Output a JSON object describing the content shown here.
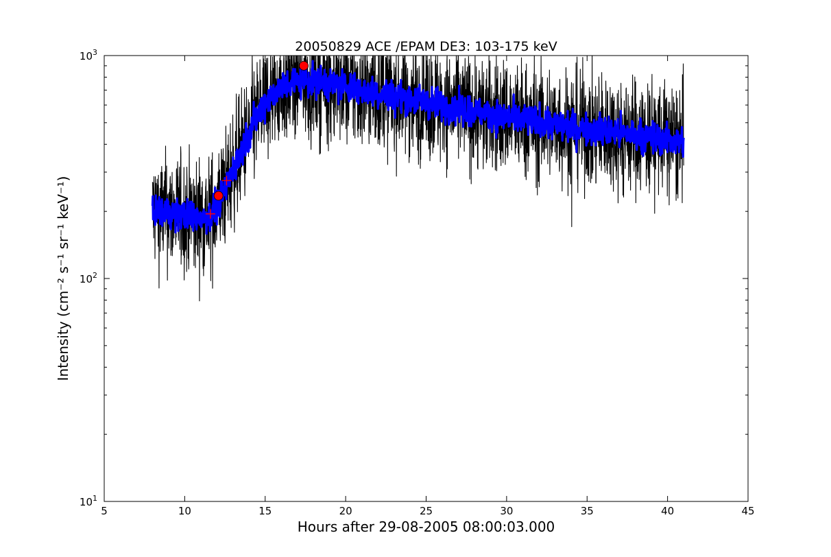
{
  "chart_data": {
    "type": "line",
    "title": "20050829 ACE /EPAM DE3: 103-175 keV",
    "xlabel": "Hours after 29-08-2005 08:00:03.000",
    "ylabel": "Intensity (cm⁻² s⁻¹ sr⁻¹ keV⁻¹)",
    "xlim": [
      5,
      45
    ],
    "ylim": [
      10,
      1000
    ],
    "yscale": "log",
    "grid": false,
    "legend": "none",
    "x_ticks": [
      5,
      10,
      15,
      20,
      25,
      30,
      35,
      40,
      45
    ],
    "y_ticks": [
      {
        "value": 10,
        "base": "10",
        "exp": "1"
      },
      {
        "value": 100,
        "base": "10",
        "exp": "2"
      },
      {
        "value": 1000,
        "base": "10",
        "exp": "3"
      }
    ],
    "series": [
      {
        "style": "raw",
        "color": "#000000",
        "noise": 0.13,
        "x": [
          8.0,
          9.0,
          10.0,
          11.0,
          11.6,
          12.0,
          12.5,
          13.0,
          13.5,
          14.0,
          14.5,
          15.0,
          15.5,
          16.0,
          16.5,
          17.0,
          17.5,
          18.0,
          19.0,
          20.0,
          22.0,
          25.0,
          28.0,
          30.0,
          32.0,
          34.0,
          36.0,
          38.0,
          40.0,
          41.0
        ],
        "y": [
          200,
          198,
          192,
          188,
          192,
          210,
          250,
          310,
          370,
          450,
          540,
          620,
          680,
          720,
          750,
          770,
          780,
          770,
          750,
          730,
          680,
          620,
          560,
          530,
          500,
          480,
          460,
          440,
          420,
          410
        ]
      },
      {
        "style": "smoothed",
        "color": "#0000ff",
        "noise": 0.035,
        "x": [
          8.0,
          9.0,
          10.0,
          11.0,
          11.6,
          12.0,
          12.5,
          13.0,
          13.5,
          14.0,
          14.5,
          15.0,
          15.5,
          16.0,
          16.5,
          17.0,
          17.5,
          18.0,
          19.0,
          20.0,
          22.0,
          25.0,
          28.0,
          30.0,
          32.0,
          34.0,
          36.0,
          38.0,
          40.0,
          41.0
        ],
        "y": [
          200,
          198,
          192,
          188,
          192,
          210,
          250,
          310,
          370,
          450,
          540,
          620,
          680,
          720,
          750,
          770,
          780,
          770,
          750,
          730,
          680,
          620,
          560,
          530,
          500,
          480,
          460,
          440,
          420,
          410
        ]
      }
    ],
    "markers": [
      {
        "symbol": "cross",
        "color": "#ff0000",
        "x": 11.6,
        "y": 195
      },
      {
        "symbol": "cross",
        "color": "#ff0000",
        "x": 12.6,
        "y": 275
      },
      {
        "symbol": "circle",
        "color": "#ff0000",
        "x": 12.1,
        "y": 235
      },
      {
        "symbol": "circle",
        "color": "#ff0000",
        "x": 17.4,
        "y": 900
      }
    ]
  }
}
